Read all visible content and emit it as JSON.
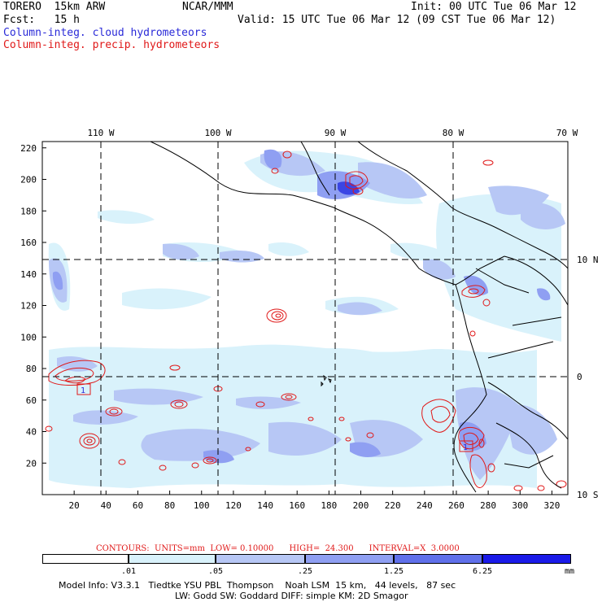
{
  "header": {
    "model": "TORERO  15km ARW",
    "org": "NCAR/MMM",
    "init": "Init: 00 UTC Tue 06 Mar 12",
    "fcst": "Fcst:   15 h",
    "valid": "Valid: 15 UTC Tue 06 Mar 12 (09 CST Tue 06 Mar 12)",
    "field1": "Column-integ. cloud hydrometeors",
    "field2": "Column-integ. precip. hydrometeors"
  },
  "axes": {
    "top_lon_labels": [
      "110 W",
      "100 W",
      "90 W",
      "80 W",
      "70 W"
    ],
    "right_lat_labels": [
      "10 N",
      "0",
      "10 S"
    ],
    "y_ticks": [
      "220",
      "200",
      "180",
      "160",
      "140",
      "120",
      "100",
      "80",
      "60",
      "40",
      "20"
    ],
    "x_ticks": [
      "20",
      "40",
      "60",
      "80",
      "100",
      "120",
      "140",
      "160",
      "180",
      "200",
      "220",
      "240",
      "260",
      "280",
      "300",
      "320"
    ]
  },
  "station_labels": [
    "1",
    "1"
  ],
  "contours_info": {
    "text": "CONTOURS:  UNITS=mm  LOW= 0.10000      HIGH=  24.300      INTERVAL=X  3.0000"
  },
  "colorbar": {
    "labels": [
      ".01",
      ".05",
      ".25",
      "1.25",
      "6.25"
    ],
    "unit": "mm",
    "colors": [
      "#ffffff",
      "#d9f2fb",
      "#b7c7f5",
      "#8f9ff2",
      "#6070ea",
      "#3a45e4",
      "#1a1ae8"
    ]
  },
  "footer": {
    "line1": "Model Info: V3.3.1   Tiedtke YSU PBL  Thompson    Noah LSM  15 km,   44 levels,   87 sec",
    "line2": "LW: Godd SW: Goddard DIFF: simple KM: 2D Smagor"
  }
}
